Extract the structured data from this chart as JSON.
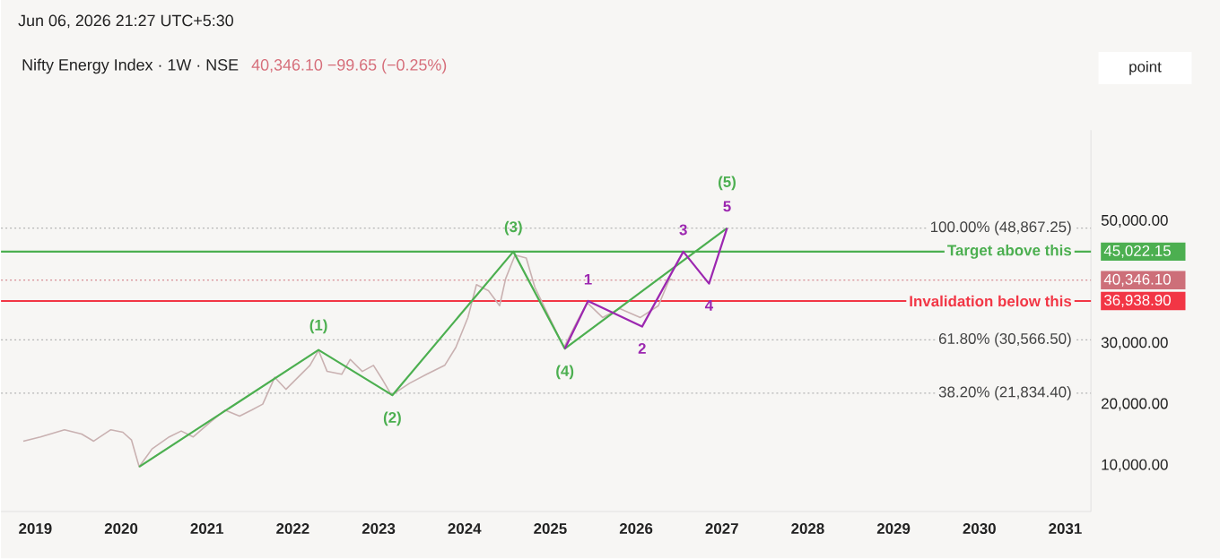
{
  "chart_data": {
    "type": "line",
    "title": "Nifty Energy Index · 1W · NSE",
    "subtitle": "40,346.10 −99.65 (−0.25%)",
    "annotations": [
      "Jun 06, 2026 21:27 UTC+5:30",
      "point",
      {
        "text": "(1)",
        "x": 2022.3,
        "y": 28930
      },
      {
        "text": "(2)",
        "x": 2023.16,
        "y": 21510
      },
      {
        "text": "(3)",
        "x": 2024.57,
        "y": 45022.15
      },
      {
        "text": "(4)",
        "x": 2025.17,
        "y": 29130
      },
      {
        "text": "(5)",
        "x": 2027.06,
        "y": 48870
      },
      {
        "text": "1",
        "x": 2025.44,
        "y": 36938.9
      },
      {
        "text": "2",
        "x": 2026.07,
        "y": 32740
      },
      {
        "text": "3",
        "x": 2026.55,
        "y": 45022.15
      },
      {
        "text": "4",
        "x": 2026.85,
        "y": 39770
      },
      {
        "text": "5",
        "x": 2027.06,
        "y": 48870
      }
    ],
    "series": [
      {
        "color": "#c9b1b1",
        "x": [
          2018.86,
          2019.06,
          2019.34,
          2019.54,
          2019.68,
          2019.88,
          2020.02,
          2020.12,
          2020.21,
          2020.36,
          2020.56,
          2020.7,
          2020.84,
          2021.04,
          2021.21,
          2021.38,
          2021.52,
          2021.65,
          2021.79,
          2021.92,
          2022.06,
          2022.2,
          2022.3,
          2022.4,
          2022.57,
          2022.67,
          2022.81,
          2022.94,
          2023.05,
          2023.15,
          2023.36,
          2023.56,
          2023.77,
          2023.9,
          2024.04,
          2024.14,
          2024.28,
          2024.41,
          2024.48,
          2024.59,
          2024.72,
          2024.82,
          2024.99,
          2025.16,
          2025.3,
          2025.43,
          2025.61,
          2025.81,
          2026.05,
          2026.26,
          2026.39,
          2026.43
        ],
        "values": [
          13990,
          14690,
          15860,
          15160,
          13990,
          15860,
          15450,
          14190,
          9790,
          12720,
          14690,
          15650,
          14690,
          17120,
          19080,
          18090,
          19080,
          20050,
          24440,
          22480,
          24440,
          26400,
          28840,
          25410,
          24940,
          27370,
          25410,
          26400,
          23950,
          21510,
          23460,
          24940,
          26400,
          29340,
          34230,
          39620,
          38630,
          36170,
          40590,
          44460,
          43990,
          39210,
          34230,
          29340,
          33250,
          36660,
          34230,
          35700,
          34230,
          36170,
          40560,
          40346.1
        ]
      },
      {
        "color": "#4caf50",
        "x": [
          2020.21,
          2022.3,
          2023.16,
          2024.57,
          2025.17,
          2027.06
        ],
        "values": [
          9790,
          28930,
          21510,
          45022.15,
          29130,
          48870
        ]
      },
      {
        "color": "#9c27b0",
        "x": [
          2025.17,
          2025.44,
          2026.07,
          2026.55,
          2026.85,
          2027.06
        ],
        "values": [
          29130,
          36938.9,
          32740,
          45022.15,
          39770,
          48870
        ]
      }
    ],
    "xlim": [
      2018.6,
      2031.3
    ],
    "xticks": [
      2019,
      2020,
      2021,
      2022,
      2023,
      2024,
      2025,
      2026,
      2027,
      2028,
      2029,
      2030,
      2031
    ],
    "ylim": [
      2470,
      64900
    ],
    "yticks": [
      {
        "value": 10000,
        "label": "10,000.00"
      },
      {
        "value": 20000,
        "label": "20,000.00"
      },
      {
        "value": 30000,
        "label": "30,000.00"
      },
      {
        "value": 36938.9,
        "label": "36,938.90"
      },
      {
        "value": 40346.1,
        "label": "40,346.10"
      },
      {
        "value": 45022.15,
        "label": "45,022.15"
      },
      {
        "value": 50000,
        "label": "50,000.00"
      }
    ],
    "ref_lines": [
      {
        "axis": "y",
        "value": 48867.25,
        "label": "100.00% (48,867.25)",
        "color": "#b5b5b5",
        "line_style": "dotted"
      },
      {
        "axis": "y",
        "value": 30566.5,
        "label": "61.80% (30,566.50)",
        "color": "#b5b5b5",
        "line_style": "dotted"
      },
      {
        "axis": "y",
        "value": 21834.4,
        "label": "38.20% (21,834.40)",
        "color": "#b5b5b5",
        "line_style": "dotted"
      },
      {
        "axis": "y",
        "value": 40346.1,
        "color": "#cd6f79",
        "line_style": "dotted"
      },
      {
        "axis": "y",
        "value": 45022.15,
        "label": "Target above this",
        "color": "#4caf50",
        "line_style": "solid"
      },
      {
        "axis": "y",
        "value": 36938.9,
        "label": "Invalidation below this",
        "color": "#f23645",
        "line_style": "solid"
      }
    ]
  }
}
